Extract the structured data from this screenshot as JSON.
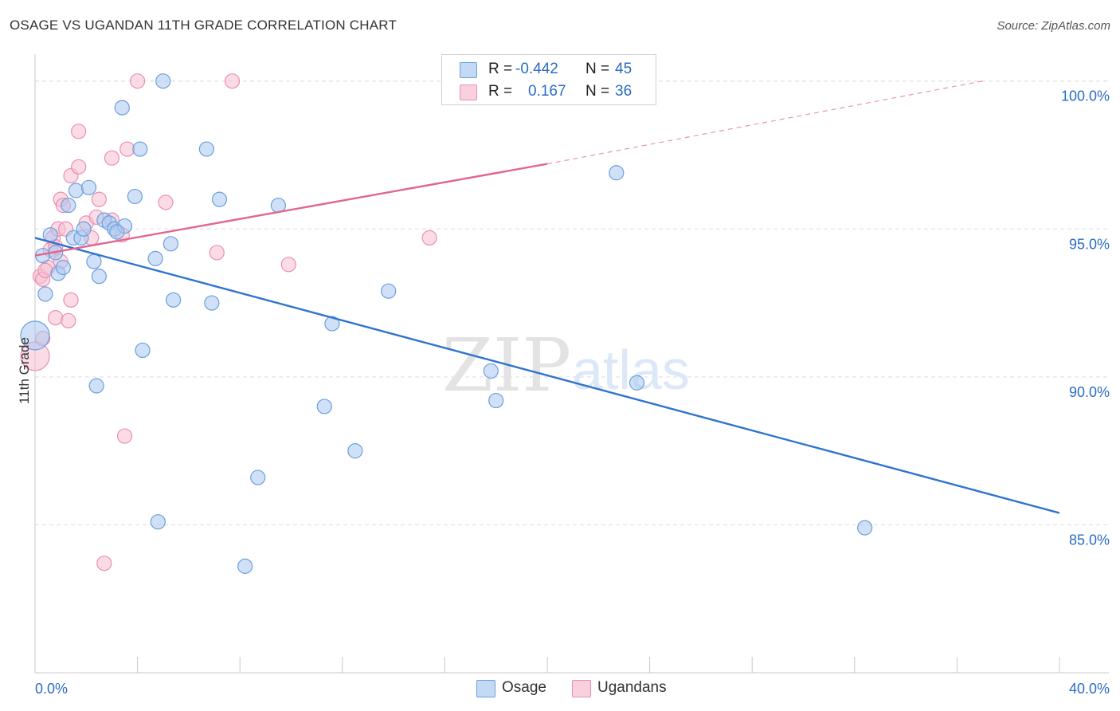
{
  "title": "OSAGE VS UGANDAN 11TH GRADE CORRELATION CHART",
  "source": "Source: ZipAtlas.com",
  "watermark": {
    "zip": "ZIP",
    "atlas": "atlas"
  },
  "legend": {
    "rows": [
      {
        "r_label": "R =",
        "r_value": "-0.442",
        "n_label": "N =",
        "n_value": "45"
      },
      {
        "r_label": "R =",
        "r_value": "0.167",
        "n_label": "N =",
        "n_value": "36"
      }
    ]
  },
  "bottom_legend": {
    "osage": "Osage",
    "ugandans": "Ugandans"
  },
  "colors": {
    "osage_fill": "#aac8f0",
    "osage_stroke": "#6b9fde",
    "osage_line": "#2f74d0",
    "ugandans_fill": "#f7c0d2",
    "ugandans_stroke": "#eb8fae",
    "ugandans_line": "#e0668f",
    "value_text": "#2b6cc4",
    "grid": "#dddddd"
  },
  "chart_data": {
    "type": "scatter",
    "title": "OSAGE VS UGANDAN 11TH GRADE CORRELATION CHART",
    "xlabel": "",
    "ylabel": "11th Grade",
    "xlim": [
      0,
      40
    ],
    "ylim": [
      80,
      100.8
    ],
    "x_tick_labels": [
      "0.0%",
      "40.0%"
    ],
    "y_ticks": [
      85,
      90,
      95,
      100
    ],
    "y_tick_labels": [
      "85.0%",
      "90.0%",
      "95.0%",
      "100.0%"
    ],
    "series": [
      {
        "name": "Osage",
        "r": -0.442,
        "n": 45,
        "trend": {
          "x0": 0,
          "y0": 94.7,
          "x1": 40,
          "y1": 85.4
        },
        "points": [
          {
            "x": 0.0,
            "y": 91.4,
            "big": true
          },
          {
            "x": 0.3,
            "y": 94.1
          },
          {
            "x": 0.4,
            "y": 92.8
          },
          {
            "x": 0.6,
            "y": 94.8
          },
          {
            "x": 0.8,
            "y": 94.2
          },
          {
            "x": 0.9,
            "y": 93.5
          },
          {
            "x": 1.1,
            "y": 93.7
          },
          {
            "x": 1.3,
            "y": 95.8
          },
          {
            "x": 1.5,
            "y": 94.7
          },
          {
            "x": 1.6,
            "y": 96.3
          },
          {
            "x": 1.8,
            "y": 94.7
          },
          {
            "x": 1.9,
            "y": 95.0
          },
          {
            "x": 2.1,
            "y": 96.4
          },
          {
            "x": 2.3,
            "y": 93.9
          },
          {
            "x": 2.4,
            "y": 89.7
          },
          {
            "x": 2.5,
            "y": 93.4
          },
          {
            "x": 2.7,
            "y": 95.3
          },
          {
            "x": 2.9,
            "y": 95.2
          },
          {
            "x": 3.1,
            "y": 95.0
          },
          {
            "x": 3.5,
            "y": 95.1
          },
          {
            "x": 3.4,
            "y": 99.1
          },
          {
            "x": 3.9,
            "y": 96.1
          },
          {
            "x": 4.1,
            "y": 97.7
          },
          {
            "x": 4.2,
            "y": 90.9
          },
          {
            "x": 4.7,
            "y": 94.0
          },
          {
            "x": 4.8,
            "y": 85.1
          },
          {
            "x": 5.0,
            "y": 100.0
          },
          {
            "x": 5.3,
            "y": 94.5
          },
          {
            "x": 5.4,
            "y": 92.6
          },
          {
            "x": 6.7,
            "y": 97.7
          },
          {
            "x": 6.9,
            "y": 92.5
          },
          {
            "x": 7.2,
            "y": 96.0
          },
          {
            "x": 8.2,
            "y": 83.6
          },
          {
            "x": 8.7,
            "y": 86.6
          },
          {
            "x": 9.5,
            "y": 95.8
          },
          {
            "x": 11.3,
            "y": 89.0
          },
          {
            "x": 11.6,
            "y": 91.8
          },
          {
            "x": 12.5,
            "y": 87.5
          },
          {
            "x": 13.8,
            "y": 92.9
          },
          {
            "x": 17.8,
            "y": 90.2
          },
          {
            "x": 18.0,
            "y": 89.2
          },
          {
            "x": 23.5,
            "y": 89.8
          },
          {
            "x": 22.7,
            "y": 96.9
          },
          {
            "x": 32.4,
            "y": 84.9
          },
          {
            "x": 3.2,
            "y": 94.9
          }
        ]
      },
      {
        "name": "Ugandans",
        "r": 0.167,
        "n": 36,
        "trend": {
          "x0": 0,
          "y0": 94.1,
          "x1": 20,
          "y1": 97.2,
          "dashed_to_x": 37,
          "dashed_to_y": 100.0
        },
        "points": [
          {
            "x": 0.0,
            "y": 90.7,
            "big": true
          },
          {
            "x": 0.2,
            "y": 93.4
          },
          {
            "x": 0.3,
            "y": 93.3
          },
          {
            "x": 0.3,
            "y": 91.3
          },
          {
            "x": 0.5,
            "y": 93.7
          },
          {
            "x": 0.6,
            "y": 94.3
          },
          {
            "x": 0.7,
            "y": 94.7
          },
          {
            "x": 0.8,
            "y": 92.0
          },
          {
            "x": 0.8,
            "y": 94.4
          },
          {
            "x": 0.9,
            "y": 95.0
          },
          {
            "x": 1.0,
            "y": 96.0
          },
          {
            "x": 1.1,
            "y": 95.8
          },
          {
            "x": 1.2,
            "y": 95.0
          },
          {
            "x": 1.3,
            "y": 91.9
          },
          {
            "x": 1.4,
            "y": 92.6
          },
          {
            "x": 1.4,
            "y": 96.8
          },
          {
            "x": 1.7,
            "y": 97.1
          },
          {
            "x": 1.7,
            "y": 98.3
          },
          {
            "x": 2.0,
            "y": 95.2
          },
          {
            "x": 2.2,
            "y": 94.7
          },
          {
            "x": 2.4,
            "y": 95.4
          },
          {
            "x": 2.5,
            "y": 96.0
          },
          {
            "x": 3.0,
            "y": 95.3
          },
          {
            "x": 3.0,
            "y": 97.4
          },
          {
            "x": 3.4,
            "y": 94.8
          },
          {
            "x": 3.5,
            "y": 88.0
          },
          {
            "x": 3.6,
            "y": 97.7
          },
          {
            "x": 4.0,
            "y": 100.0
          },
          {
            "x": 2.7,
            "y": 83.7
          },
          {
            "x": 5.1,
            "y": 95.9
          },
          {
            "x": 7.1,
            "y": 94.2
          },
          {
            "x": 7.7,
            "y": 100.0
          },
          {
            "x": 9.9,
            "y": 93.8
          },
          {
            "x": 15.4,
            "y": 94.7
          },
          {
            "x": 0.4,
            "y": 93.6
          },
          {
            "x": 1.0,
            "y": 93.9
          }
        ]
      }
    ]
  }
}
